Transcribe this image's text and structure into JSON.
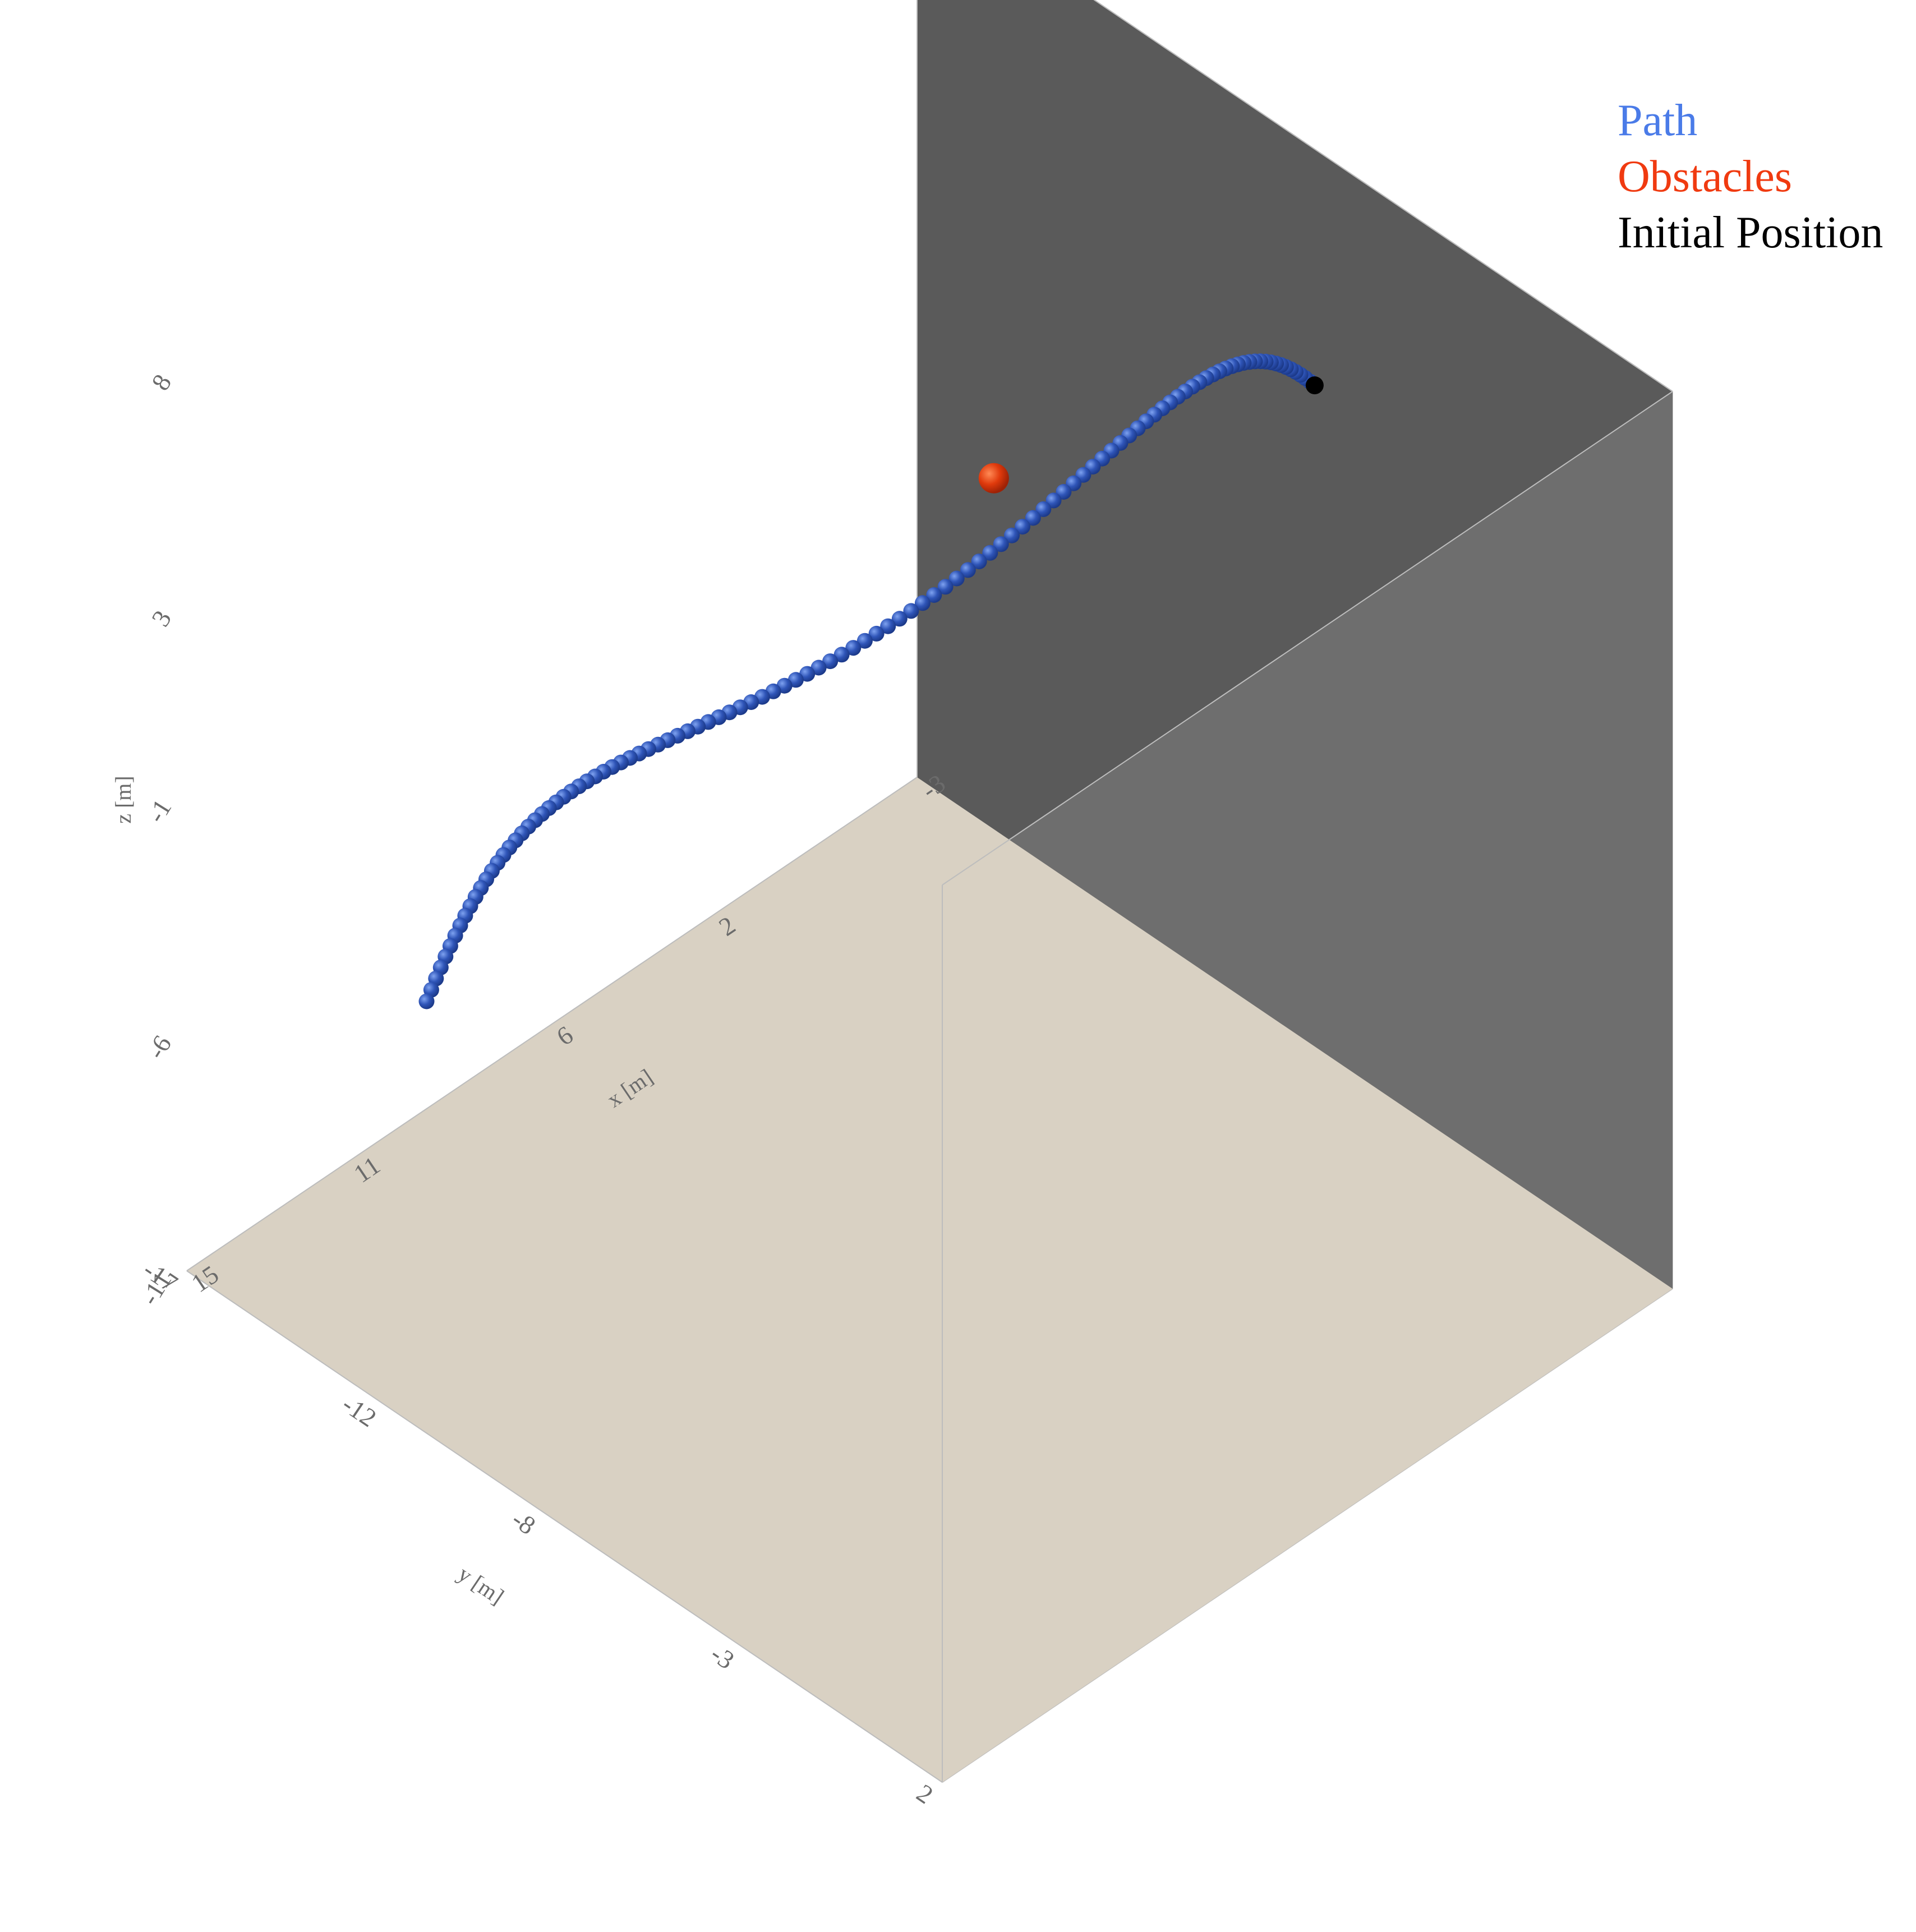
{
  "chart_data": {
    "type": "scatter3d",
    "axes": {
      "x": {
        "label": "x [m]",
        "ticks": [
          -3,
          2,
          6,
          11,
          15
        ],
        "tick_labels": [
          "-3",
          "2",
          "6",
          "11",
          "15"
        ],
        "range": [
          -3,
          15
        ]
      },
      "y": {
        "label": "y [m]",
        "ticks": [
          -17,
          -12,
          -8,
          -3,
          2
        ],
        "tick_labels": [
          "-17",
          "-12",
          "-8",
          "-3",
          "2"
        ],
        "range": [
          -17,
          2
        ]
      },
      "z": {
        "label": "z [m]",
        "ticks": [
          -11,
          -6,
          -1,
          3,
          8
        ],
        "tick_labels": [
          "-11",
          "-6",
          "-1",
          "3",
          "8"
        ],
        "range": [
          -11,
          8
        ]
      }
    },
    "scene": {
      "walls": {
        "back_x_wall_color": "#5a5a5a",
        "back_y_wall_color": "#6e6e6e",
        "floor_color": "#d9d1c3"
      }
    },
    "legend": {
      "placement": "top-right"
    },
    "series": [
      {
        "name": "Path",
        "color": "#4a7be8",
        "marker_color": "#2f55b8",
        "kind": "markers"
      },
      {
        "name": "Obstacles",
        "color": "#f03a10",
        "kind": "sphere",
        "points": [
          {
            "x": 0.5,
            "y": -11.5,
            "z": 0.5
          }
        ]
      },
      {
        "name": "Initial Position",
        "color": "#000000",
        "kind": "marker",
        "points": [
          {
            "x": -3,
            "y": -7,
            "z": 3
          }
        ]
      }
    ]
  }
}
